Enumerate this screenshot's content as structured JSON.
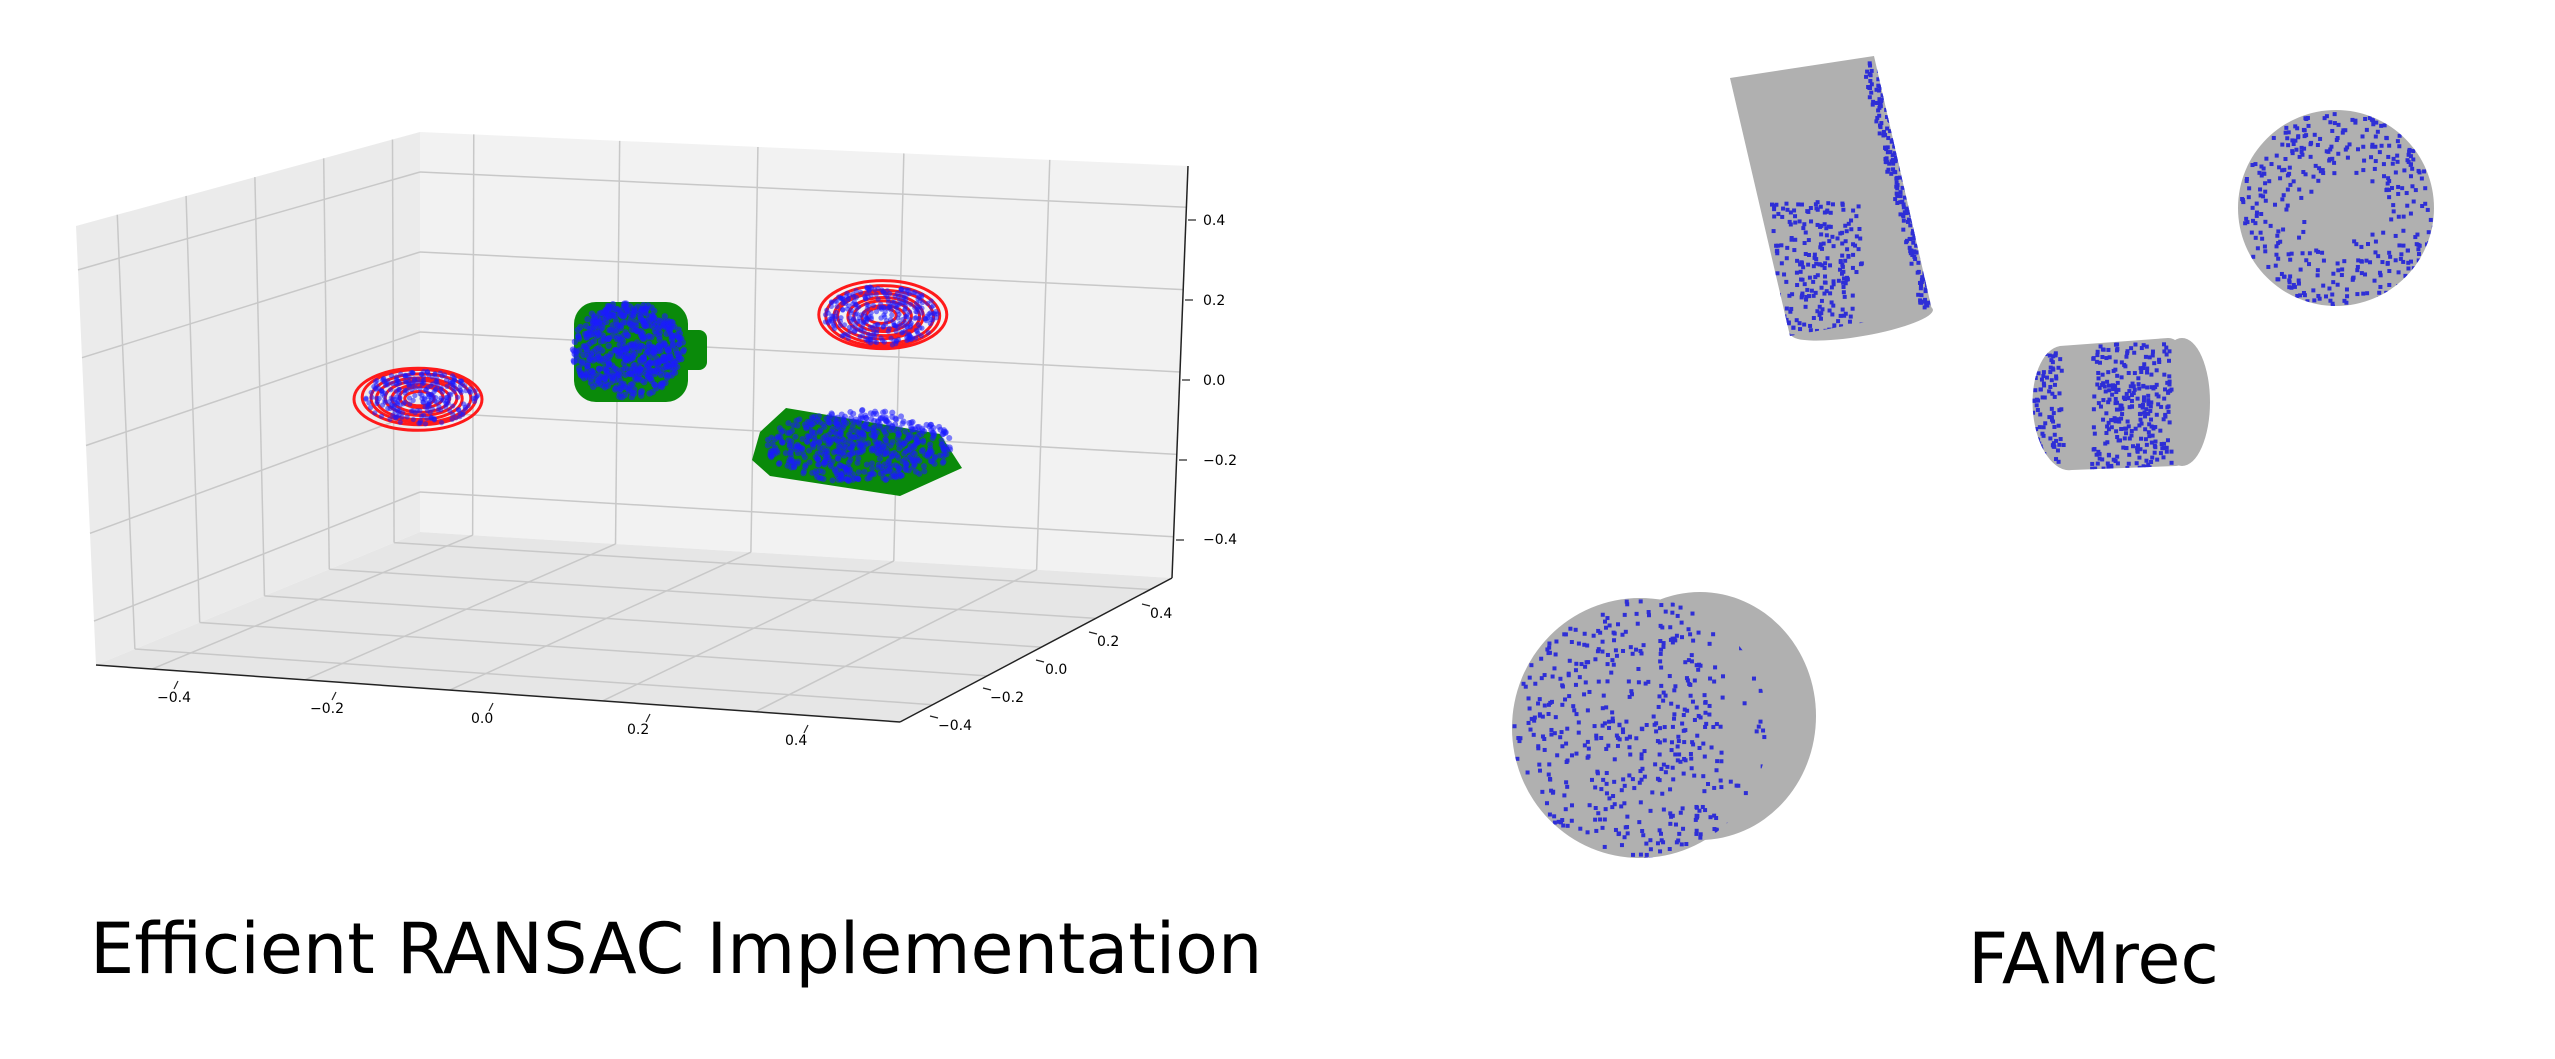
{
  "left_panel": {
    "caption": "Efficient RANSAC Implementation",
    "x_ticks": [
      "−0.4",
      "−0.2",
      "0.0",
      "0.2",
      "0.4"
    ],
    "y_ticks": [
      "−0.4",
      "−0.2",
      "0.0",
      "0.2",
      "0.4"
    ],
    "z_ticks": [
      "−0.4",
      "−0.2",
      "0.0",
      "0.2",
      "0.4"
    ],
    "colors": {
      "pane": "#f2f2f2",
      "grid": "#c8c8c8",
      "axis": "#222222",
      "points": "#1a1aff",
      "plane_fit": "#ff1a1a",
      "cylinder_fit": "#0a8a0a"
    }
  },
  "right_panel": {
    "caption": "FAMrec",
    "colors": {
      "surface": "#b0b0b0",
      "points": "#2e2ed6"
    }
  }
}
